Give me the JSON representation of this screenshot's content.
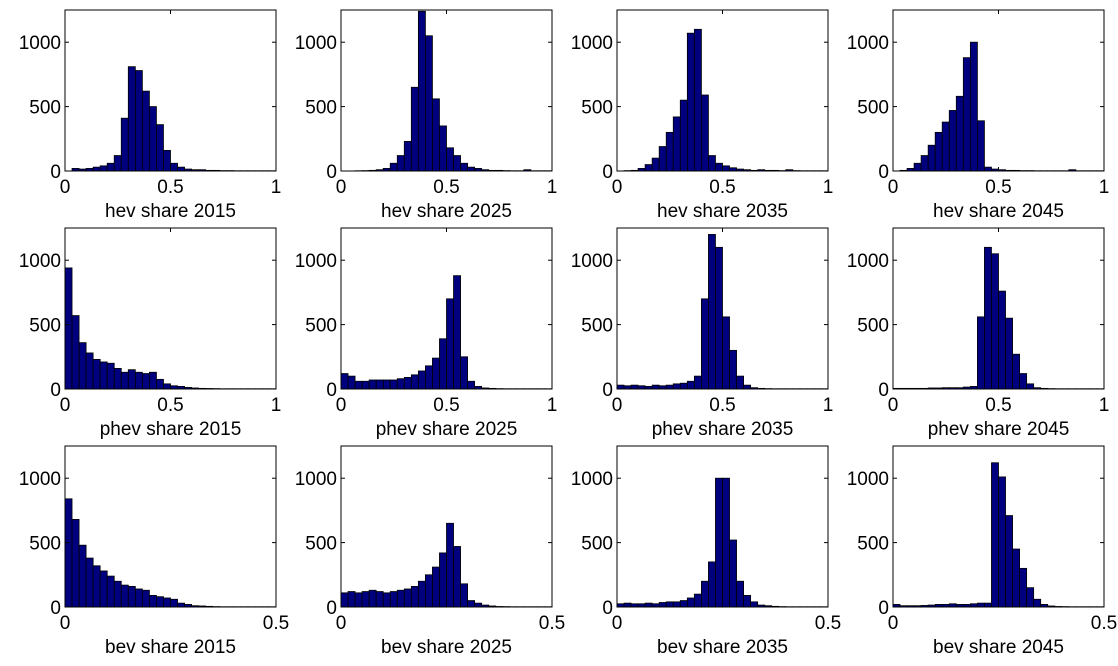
{
  "figure": {
    "bar_color": "#00007F",
    "edge_color": "#000000",
    "background": "#ffffff"
  },
  "chart_data": [
    {
      "type": "bar",
      "xlabel": "hev share 2015",
      "xlim": [
        0,
        1
      ],
      "ylim": [
        0,
        1250
      ],
      "xticks": [
        "0",
        "0.5",
        "1"
      ],
      "yticks": [
        "0",
        "500",
        "1000"
      ],
      "grid": false,
      "bin_width": 0.0333,
      "values": [
        0,
        20,
        15,
        20,
        30,
        40,
        60,
        120,
        410,
        810,
        780,
        620,
        500,
        360,
        160,
        60,
        30,
        15,
        10,
        10,
        5,
        5,
        3,
        3,
        2,
        2,
        2,
        2,
        2,
        2
      ]
    },
    {
      "type": "bar",
      "xlabel": "hev share 2025",
      "xlim": [
        0,
        1
      ],
      "ylim": [
        0,
        1250
      ],
      "xticks": [
        "0",
        "0.5",
        "1"
      ],
      "yticks": [
        "0",
        "500",
        "1000"
      ],
      "grid": false,
      "bin_width": 0.0333,
      "values": [
        0,
        0,
        2,
        3,
        5,
        10,
        20,
        60,
        120,
        230,
        650,
        1240,
        1050,
        560,
        350,
        180,
        120,
        60,
        30,
        20,
        10,
        5,
        5,
        3,
        2,
        2,
        10,
        2,
        2,
        2
      ]
    },
    {
      "type": "bar",
      "xlabel": "hev share 2035",
      "xlim": [
        0,
        1
      ],
      "ylim": [
        0,
        1250
      ],
      "xticks": [
        "0",
        "0.5",
        "1"
      ],
      "yticks": [
        "0",
        "500",
        "1000"
      ],
      "grid": false,
      "bin_width": 0.0333,
      "values": [
        0,
        3,
        5,
        20,
        50,
        100,
        190,
        300,
        420,
        550,
        1070,
        1100,
        590,
        120,
        60,
        40,
        25,
        15,
        10,
        5,
        10,
        5,
        5,
        3,
        10,
        3,
        2,
        2,
        2,
        2
      ]
    },
    {
      "type": "bar",
      "xlabel": "hev share 2045",
      "xlim": [
        0,
        1
      ],
      "ylim": [
        0,
        1250
      ],
      "xticks": [
        "0",
        "0.5",
        "1"
      ],
      "yticks": [
        "0",
        "500",
        "1000"
      ],
      "grid": false,
      "bin_width": 0.0333,
      "values": [
        0,
        5,
        20,
        60,
        120,
        200,
        300,
        380,
        470,
        580,
        880,
        1000,
        390,
        30,
        15,
        10,
        5,
        5,
        3,
        3,
        2,
        2,
        2,
        2,
        2,
        10,
        2,
        2,
        2,
        2
      ]
    },
    {
      "type": "bar",
      "xlabel": "phev share 2015",
      "xlim": [
        0,
        1
      ],
      "ylim": [
        0,
        1250
      ],
      "xticks": [
        "0",
        "0.5",
        "1"
      ],
      "yticks": [
        "0",
        "500",
        "1000"
      ],
      "grid": false,
      "bin_width": 0.0333,
      "values": [
        940,
        570,
        360,
        280,
        230,
        210,
        200,
        160,
        130,
        150,
        130,
        120,
        130,
        75,
        40,
        25,
        20,
        12,
        8,
        5,
        4,
        3,
        2,
        2,
        2,
        2,
        2,
        2,
        2,
        2
      ]
    },
    {
      "type": "bar",
      "xlabel": "phev share 2025",
      "xlim": [
        0,
        1
      ],
      "ylim": [
        0,
        1250
      ],
      "xticks": [
        "0",
        "0.5",
        "1"
      ],
      "yticks": [
        "0",
        "500",
        "1000"
      ],
      "grid": false,
      "bin_width": 0.0333,
      "values": [
        120,
        100,
        60,
        60,
        70,
        70,
        70,
        70,
        80,
        90,
        110,
        140,
        180,
        240,
        390,
        700,
        880,
        250,
        60,
        20,
        8,
        5,
        3,
        2,
        2,
        2,
        2,
        2,
        2,
        2
      ]
    },
    {
      "type": "bar",
      "xlabel": "phev share 2035",
      "xlim": [
        0,
        1
      ],
      "ylim": [
        0,
        1250
      ],
      "xticks": [
        "0",
        "0.5",
        "1"
      ],
      "yticks": [
        "0",
        "500",
        "1000"
      ],
      "grid": false,
      "bin_width": 0.0333,
      "values": [
        30,
        25,
        30,
        25,
        20,
        30,
        25,
        30,
        40,
        45,
        60,
        100,
        700,
        1200,
        1100,
        560,
        300,
        100,
        30,
        10,
        5,
        3,
        2,
        2,
        2,
        2,
        2,
        2,
        2,
        2
      ]
    },
    {
      "type": "bar",
      "xlabel": "phev share 2045",
      "xlim": [
        0,
        1
      ],
      "ylim": [
        0,
        1250
      ],
      "xticks": [
        "0",
        "0.5",
        "1"
      ],
      "yticks": [
        "0",
        "500",
        "1000"
      ],
      "grid": false,
      "bin_width": 0.0333,
      "values": [
        5,
        5,
        5,
        5,
        5,
        8,
        8,
        10,
        10,
        10,
        15,
        20,
        560,
        1100,
        1050,
        760,
        550,
        270,
        120,
        40,
        10,
        5,
        3,
        2,
        2,
        2,
        2,
        2,
        2,
        2
      ]
    },
    {
      "type": "bar",
      "xlabel": "bev share 2015",
      "xlim": [
        0,
        0.5
      ],
      "ylim": [
        0,
        1250
      ],
      "xticks": [
        "0",
        "0.5"
      ],
      "yticks": [
        "0",
        "500",
        "1000"
      ],
      "grid": false,
      "bin_width": 0.0167,
      "values": [
        840,
        680,
        480,
        380,
        320,
        280,
        240,
        200,
        170,
        160,
        140,
        130,
        90,
        80,
        70,
        60,
        30,
        20,
        10,
        8,
        5,
        3,
        2,
        2,
        2,
        2,
        2,
        2,
        2,
        2
      ]
    },
    {
      "type": "bar",
      "xlabel": "bev share 2025",
      "xlim": [
        0,
        0.5
      ],
      "ylim": [
        0,
        1250
      ],
      "xticks": [
        "0",
        "0.5"
      ],
      "yticks": [
        "0",
        "500",
        "1000"
      ],
      "grid": false,
      "bin_width": 0.0167,
      "values": [
        110,
        120,
        110,
        120,
        130,
        120,
        110,
        120,
        130,
        140,
        160,
        200,
        250,
        310,
        420,
        650,
        470,
        180,
        50,
        30,
        15,
        8,
        4,
        3,
        2,
        2,
        2,
        2,
        2,
        2
      ]
    },
    {
      "type": "bar",
      "xlabel": "bev share 2035",
      "xlim": [
        0,
        0.5
      ],
      "ylim": [
        0,
        1250
      ],
      "xticks": [
        "0",
        "0.5"
      ],
      "yticks": [
        "0",
        "500",
        "1000"
      ],
      "grid": false,
      "bin_width": 0.0167,
      "values": [
        25,
        30,
        25,
        25,
        30,
        25,
        35,
        40,
        40,
        50,
        70,
        100,
        200,
        350,
        1000,
        1000,
        520,
        200,
        90,
        40,
        15,
        10,
        5,
        3,
        2,
        2,
        2,
        2,
        2,
        2
      ]
    },
    {
      "type": "bar",
      "xlabel": "bev share 2045",
      "xlim": [
        0,
        0.5
      ],
      "ylim": [
        0,
        1250
      ],
      "xticks": [
        "0",
        "0.5"
      ],
      "yticks": [
        "0",
        "500",
        "1000"
      ],
      "grid": false,
      "bin_width": 0.0167,
      "values": [
        20,
        10,
        10,
        10,
        12,
        15,
        20,
        20,
        25,
        20,
        20,
        25,
        30,
        30,
        1120,
        1010,
        710,
        450,
        300,
        150,
        60,
        20,
        8,
        4,
        3,
        2,
        2,
        2,
        2,
        2
      ]
    }
  ]
}
